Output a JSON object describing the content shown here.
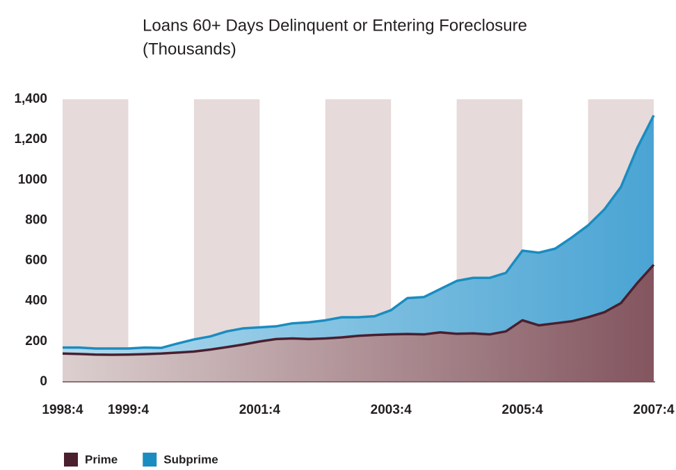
{
  "chart_data": {
    "type": "stacked-area",
    "title": "Loans 60+ Days Delinquent or Entering Foreclosure",
    "subtitle": "(Thousands)",
    "categories": [
      "1998:4",
      null,
      null,
      null,
      "1999:4",
      null,
      null,
      null,
      null,
      null,
      null,
      null,
      "2001:4",
      null,
      null,
      null,
      null,
      null,
      null,
      null,
      "2003:4",
      null,
      null,
      null,
      null,
      null,
      null,
      null,
      "2005:4",
      null,
      null,
      null,
      null,
      null,
      null,
      null,
      "2007:4"
    ],
    "series": [
      {
        "name": "Prime",
        "color": "#4a1f2e",
        "values": [
          140,
          138,
          135,
          134,
          135,
          137,
          140,
          145,
          150,
          160,
          172,
          185,
          200,
          212,
          215,
          212,
          215,
          220,
          228,
          232,
          235,
          237,
          235,
          245,
          238,
          240,
          235,
          250,
          305,
          280,
          290,
          300,
          320,
          345,
          390,
          490,
          580
        ]
      },
      {
        "name": "Subprime",
        "color": "#1a8cc0",
        "values": [
          30,
          32,
          30,
          31,
          30,
          33,
          28,
          45,
          60,
          65,
          78,
          80,
          70,
          63,
          75,
          83,
          90,
          100,
          92,
          93,
          120,
          178,
          185,
          215,
          262,
          275,
          280,
          290,
          345,
          360,
          370,
          415,
          455,
          510,
          575,
          670,
          740
        ]
      }
    ],
    "ylim": [
      0,
      1400
    ],
    "yticks": [
      0,
      200,
      400,
      600,
      800,
      1000,
      {
        "value": 1200,
        "label": "1,200"
      },
      {
        "value": 1400,
        "label": "1,400"
      }
    ],
    "grid": false,
    "year_bands": true,
    "legend": "bottom-left"
  }
}
